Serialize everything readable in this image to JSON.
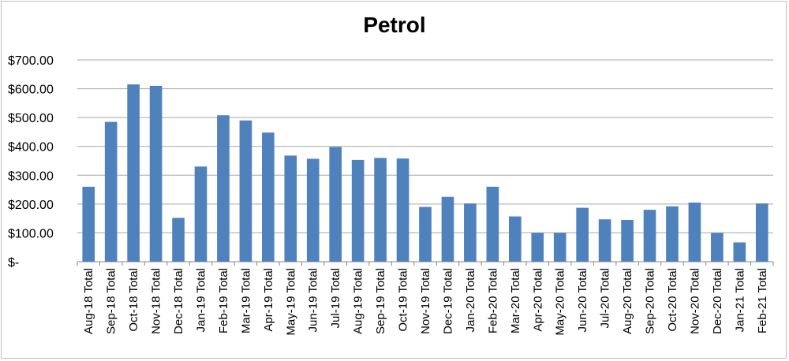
{
  "chart_data": {
    "type": "bar",
    "title": "Petrol",
    "xlabel": "",
    "ylabel": "",
    "categories": [
      "Aug-18 Total",
      "Sep-18 Total",
      "Oct-18 Total",
      "Nov-18 Total",
      "Dec-18 Total",
      "Jan-19 Total",
      "Feb-19 Total",
      "Mar-19 Total",
      "Apr-19 Total",
      "May-19 Total",
      "Jun-19 Total",
      "Jul-19 Total",
      "Aug-19 Total",
      "Sep-19 Total",
      "Oct-19 Total",
      "Nov-19 Total",
      "Dec-19 Total",
      "Jan-20 Total",
      "Feb-20 Total",
      "Mar-20 Total",
      "Apr-20 Total",
      "May-20 Total",
      "Jun-20 Total",
      "Jul-20 Total",
      "Aug-20 Total",
      "Sep-20 Total",
      "Oct-20 Total",
      "Nov-20 Total",
      "Dec-20 Total",
      "Jan-21 Total",
      "Feb-21 Total"
    ],
    "values": [
      260,
      485,
      615,
      610,
      152,
      330,
      508,
      490,
      448,
      368,
      357,
      398,
      353,
      360,
      358,
      190,
      225,
      202,
      260,
      157,
      100,
      100,
      187,
      147,
      145,
      180,
      192,
      205,
      100,
      67,
      202
    ],
    "ylim": [
      0,
      700
    ],
    "yticks": [
      0,
      100,
      200,
      300,
      400,
      500,
      600,
      700
    ],
    "ytick_labels": [
      "$-",
      "$100.00",
      "$200.00",
      "$300.00",
      "$400.00",
      "$500.00",
      "$600.00",
      "$700.00"
    ],
    "grid": true,
    "legend": "none",
    "bar_color": "#4f81bd",
    "grid_color": "#a6a6a6"
  }
}
